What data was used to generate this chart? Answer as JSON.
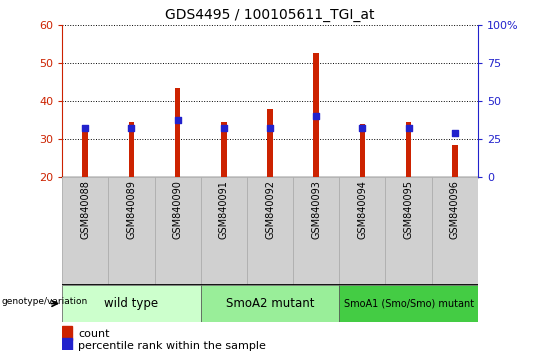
{
  "title": "GDS4495 / 100105611_TGI_at",
  "samples": [
    "GSM840088",
    "GSM840089",
    "GSM840090",
    "GSM840091",
    "GSM840092",
    "GSM840093",
    "GSM840094",
    "GSM840095",
    "GSM840096"
  ],
  "counts": [
    32.5,
    34.5,
    43.5,
    34.5,
    38.0,
    52.5,
    34.0,
    34.5,
    28.5
  ],
  "percentiles_left": [
    33.0,
    33.0,
    35.0,
    33.0,
    33.0,
    36.0,
    33.0,
    33.0,
    31.5
  ],
  "ymin": 20,
  "ymax": 60,
  "yticks_left": [
    20,
    30,
    40,
    50,
    60
  ],
  "yticks_right_pct": [
    0,
    25,
    50,
    75,
    100
  ],
  "bar_color": "#cc2200",
  "percentile_color": "#2222cc",
  "bar_width": 0.12,
  "group_labels": [
    "wild type",
    "SmoA2 mutant",
    "SmoA1 (Smo/Smo) mutant"
  ],
  "group_starts": [
    0,
    3,
    6
  ],
  "group_ends": [
    2,
    5,
    8
  ],
  "group_colors": [
    "#ccffcc",
    "#99ee99",
    "#44cc44"
  ],
  "genotype_label": "genotype/variation",
  "legend_count": "count",
  "legend_percentile": "percentile rank within the sample",
  "left_axis_color": "#cc2200",
  "right_axis_color": "#2222cc",
  "tick_bg_color": "#d0d0d0",
  "title_fontsize": 10
}
